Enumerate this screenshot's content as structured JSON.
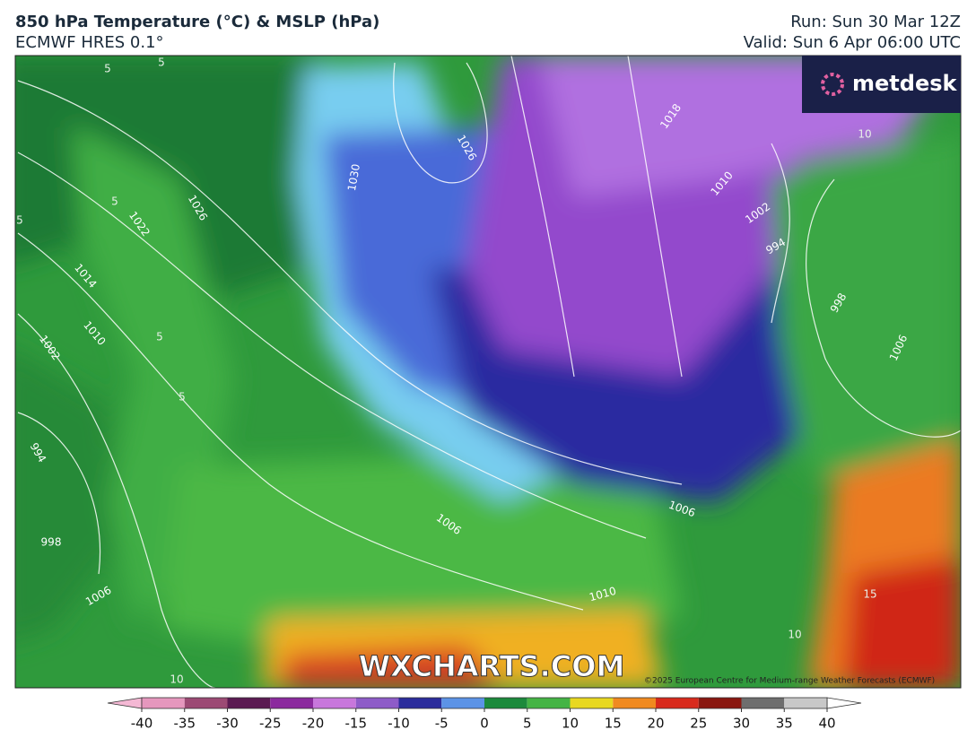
{
  "header": {
    "title": "850 hPa Temperature (°C) & MSLP (hPa)",
    "subtitle": "ECMWF HRES 0.1°",
    "run": "Run: Sun 30 Mar 12Z",
    "valid": "Valid: Sun 6 Apr 06:00 UTC"
  },
  "logo": "metdesk",
  "watermark": "WXCHARTS.COM",
  "copyright": "©2025 European Centre for Medium-range Weather Forecasts (ECMWF)",
  "isobar_labels": [
    "1026",
    "1026",
    "1030",
    "1022",
    "1014",
    "1010",
    "1002",
    "994",
    "998",
    "1006",
    "1006",
    "1010",
    "1006",
    "1018",
    "1010",
    "1002",
    "994",
    "998",
    "1006"
  ],
  "temperature_labels": [
    "5",
    "5",
    "5",
    "5",
    "5",
    "5",
    "10",
    "15",
    "10",
    "10"
  ],
  "colorbar": {
    "ticks": [
      -40,
      -35,
      -30,
      -25,
      -20,
      -15,
      -10,
      -5,
      0,
      5,
      10,
      15,
      20,
      25,
      30,
      35,
      40
    ],
    "colors": [
      "#e597bd",
      "#9c4a74",
      "#5b1b52",
      "#8b2a9e",
      "#c877dc",
      "#8e5cc8",
      "#2b2c9c",
      "#5c93e6",
      "#1c8a3c",
      "#45b445",
      "#e8d820",
      "#f08a20",
      "#d82a1c",
      "#8a1810",
      "#6e6e6e",
      "#c8c8c8"
    ],
    "under_color": "#f4b8d4",
    "over_color": "#ffffff"
  }
}
